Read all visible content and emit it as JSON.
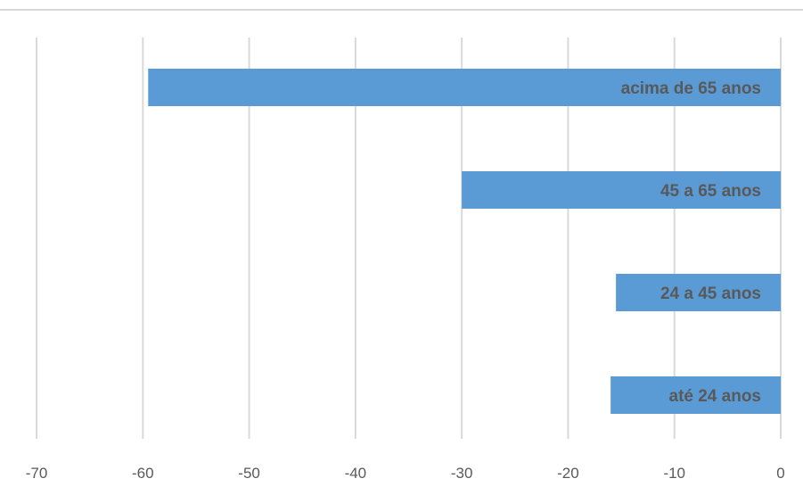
{
  "chart_data": {
    "type": "bar",
    "orientation": "horizontal",
    "title": "",
    "xlabel": "",
    "ylabel": "",
    "categories": [
      "acima de 65 anos",
      "45 a 65 anos",
      "24 a 45 anos",
      "até 24 anos"
    ],
    "values": [
      -59.5,
      -30,
      -15.5,
      -16
    ],
    "xlim": [
      -70,
      0
    ],
    "x_ticks": [
      "-70",
      "-60",
      "-50",
      "-40",
      "-30",
      "-20",
      "-10",
      "0"
    ],
    "x_tick_values": [
      -70,
      -60,
      -50,
      -40,
      -30,
      -20,
      -10,
      0
    ],
    "grid": true,
    "legend": "none",
    "bar_color": "#5b9bd5",
    "label_color": "#595959",
    "grid_color": "#d9d9d9"
  }
}
